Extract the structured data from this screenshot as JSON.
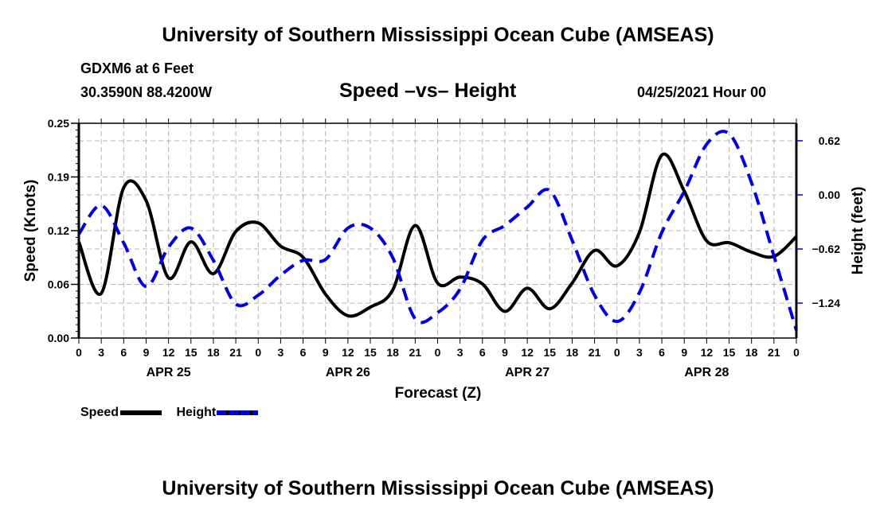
{
  "header": {
    "top_title": "University of Southern Mississippi Ocean Cube (AMSEAS)",
    "station": "GDXM6 at 6 Feet",
    "coords": "30.3590N  88.4200W",
    "chart_title": "Speed –vs– Height",
    "datetime": "04/25/2021 Hour 00"
  },
  "footer": {
    "bottom_title": "University of Southern Mississippi Ocean Cube (AMSEAS)"
  },
  "legend": {
    "speed_label": "Speed",
    "height_label": "Height"
  },
  "colors": {
    "speed": "#000000",
    "height": "#0000dd",
    "grid": "#b4b4b4"
  },
  "chart_data": {
    "type": "line",
    "title": "Speed –vs– Height",
    "xlabel": "Forecast (Z)",
    "ylabel": "Speed (Knots)",
    "y2label": "Height (feet)",
    "x_unit": "hours from 04/25/2021 00Z",
    "xlim": [
      0,
      96
    ],
    "ylim": [
      0,
      0.25
    ],
    "y2lim": [
      -1.64,
      0.82
    ],
    "grid": true,
    "legend_position": "bottom-left",
    "x_tick_hours": [
      0,
      3,
      6,
      9,
      12,
      15,
      18,
      21,
      24,
      27,
      30,
      33,
      36,
      39,
      42,
      45,
      48,
      51,
      54,
      57,
      60,
      63,
      66,
      69,
      72,
      75,
      78,
      81,
      84,
      87,
      90,
      93,
      96
    ],
    "x_tick_labels": [
      "0",
      "3",
      "6",
      "9",
      "12",
      "15",
      "18",
      "21",
      "0",
      "3",
      "6",
      "9",
      "12",
      "15",
      "18",
      "21",
      "0",
      "3",
      "6",
      "9",
      "12",
      "15",
      "18",
      "21",
      "0",
      "3",
      "6",
      "9",
      "12",
      "15",
      "18",
      "21",
      "0"
    ],
    "day_labels": [
      {
        "label": "APR 25",
        "hour": 12
      },
      {
        "label": "APR 26",
        "hour": 36
      },
      {
        "label": "APR 27",
        "hour": 60
      },
      {
        "label": "APR 28",
        "hour": 84
      }
    ],
    "y_ticks": [
      0.0,
      0.0625,
      0.125,
      0.1875,
      0.25
    ],
    "y_tick_labels": [
      "0.00",
      "0.06",
      "0.12",
      "0.19",
      "0.25"
    ],
    "y2_ticks": [
      -1.24,
      -0.62,
      0.0,
      0.62
    ],
    "y2_tick_labels": [
      "−1.24",
      "−0.62",
      "0.00",
      "0.62"
    ],
    "x": [
      0,
      3,
      6,
      9,
      12,
      15,
      18,
      21,
      24,
      27,
      30,
      33,
      36,
      39,
      42,
      45,
      48,
      51,
      54,
      57,
      60,
      63,
      66,
      69,
      72,
      75,
      78,
      81,
      84,
      87,
      90,
      93,
      96
    ],
    "series": [
      {
        "name": "Speed",
        "axis": "left",
        "style": "solid",
        "values": [
          0.112,
          0.052,
          0.175,
          0.16,
          0.07,
          0.112,
          0.075,
          0.124,
          0.134,
          0.107,
          0.094,
          0.051,
          0.026,
          0.036,
          0.056,
          0.131,
          0.064,
          0.071,
          0.063,
          0.031,
          0.058,
          0.034,
          0.064,
          0.102,
          0.084,
          0.123,
          0.213,
          0.171,
          0.113,
          0.111,
          0.1,
          0.095,
          0.118
        ]
      },
      {
        "name": "Height",
        "axis": "right",
        "style": "dashed",
        "values": [
          -0.45,
          -0.12,
          -0.55,
          -1.05,
          -0.6,
          -0.38,
          -0.75,
          -1.25,
          -1.15,
          -0.92,
          -0.75,
          -0.74,
          -0.38,
          -0.38,
          -0.72,
          -1.42,
          -1.35,
          -1.08,
          -0.52,
          -0.35,
          -0.14,
          0.05,
          -0.52,
          -1.15,
          -1.45,
          -1.12,
          -0.43,
          0.04,
          0.58,
          0.7,
          0.14,
          -0.7,
          -1.55
        ]
      }
    ]
  }
}
